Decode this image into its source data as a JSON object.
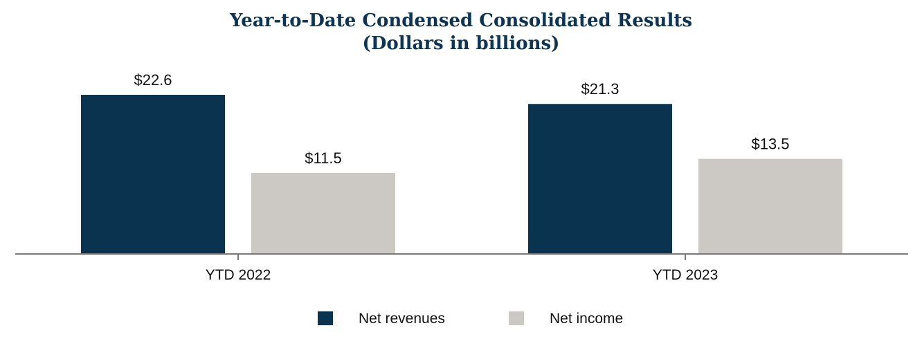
{
  "chart_data": {
    "type": "bar",
    "title": "Year-to-Date Condensed Consolidated Results",
    "subtitle": "(Dollars in billions)",
    "categories": [
      "YTD 2022",
      "YTD 2023"
    ],
    "series": [
      {
        "name": "Net revenues",
        "values": [
          22.6,
          21.3
        ],
        "labels": [
          "$22.6",
          "$21.3"
        ],
        "color": "#0a3350"
      },
      {
        "name": "Net income",
        "values": [
          11.5,
          13.5
        ],
        "labels": [
          "$11.5",
          "$13.5"
        ],
        "color": "#ccc9c4"
      }
    ],
    "ylim": [
      0,
      25
    ],
    "grid": false,
    "legend_position": "bottom-center"
  }
}
